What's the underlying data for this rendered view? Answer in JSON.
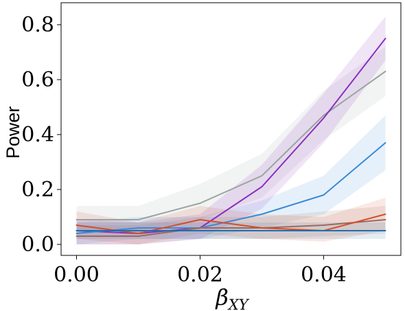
{
  "chart_data": {
    "type": "line",
    "title": "",
    "xlabel": "β_XY",
    "xlabel_parts": {
      "base": "β",
      "subscript": "XY"
    },
    "ylabel": "Power",
    "x": [
      0.0,
      0.01,
      0.02,
      0.03,
      0.04,
      0.05
    ],
    "xlim": [
      -0.0025,
      0.0525
    ],
    "ylim": [
      -0.04,
      0.88
    ],
    "x_ticks": [
      0.0,
      0.02,
      0.04
    ],
    "x_tick_labels": [
      "0.00",
      "0.02",
      "0.04"
    ],
    "y_ticks": [
      0.0,
      0.2,
      0.4,
      0.6,
      0.8
    ],
    "y_tick_labels": [
      "0.0",
      "0.2",
      "0.4",
      "0.6",
      "0.8"
    ],
    "grid": false,
    "legend": "none",
    "series": [
      {
        "color": "#9aa39f",
        "values": [
          0.09,
          0.09,
          0.15,
          0.25,
          0.47,
          0.63
        ],
        "lower": [
          0.05,
          0.05,
          0.09,
          0.17,
          0.38,
          0.54
        ],
        "upper": [
          0.14,
          0.14,
          0.22,
          0.33,
          0.56,
          0.72
        ]
      },
      {
        "color": "#8a2fc0",
        "values": [
          0.05,
          0.04,
          0.06,
          0.21,
          0.46,
          0.75
        ],
        "lower": [
          0.0,
          0.0,
          0.02,
          0.13,
          0.37,
          0.67
        ],
        "upper": [
          0.09,
          0.08,
          0.11,
          0.29,
          0.55,
          0.83
        ]
      },
      {
        "color": "#3a8ad6",
        "values": [
          0.04,
          0.06,
          0.06,
          0.11,
          0.18,
          0.37
        ],
        "lower": [
          0.0,
          0.02,
          0.02,
          0.06,
          0.11,
          0.27
        ],
        "upper": [
          0.08,
          0.1,
          0.1,
          0.16,
          0.25,
          0.47
        ]
      },
      {
        "color": "#9a6a5e",
        "values": [
          0.03,
          0.03,
          0.06,
          0.06,
          0.07,
          0.09
        ],
        "lower": [
          0.0,
          0.0,
          0.02,
          0.02,
          0.03,
          0.04
        ],
        "upper": [
          0.07,
          0.07,
          0.1,
          0.1,
          0.12,
          0.14
        ]
      },
      {
        "color": "#d24f2a",
        "values": [
          0.07,
          0.04,
          0.09,
          0.06,
          0.05,
          0.11
        ],
        "lower": [
          0.02,
          0.0,
          0.04,
          0.02,
          0.01,
          0.05
        ],
        "upper": [
          0.12,
          0.08,
          0.14,
          0.11,
          0.1,
          0.17
        ]
      },
      {
        "color": "#1f6fb0",
        "values": [
          0.05,
          0.05,
          0.05,
          0.05,
          0.05,
          0.05
        ],
        "lower": [
          0.02,
          0.02,
          0.02,
          0.02,
          0.02,
          0.02
        ],
        "upper": [
          0.08,
          0.08,
          0.08,
          0.08,
          0.08,
          0.08
        ]
      }
    ]
  }
}
